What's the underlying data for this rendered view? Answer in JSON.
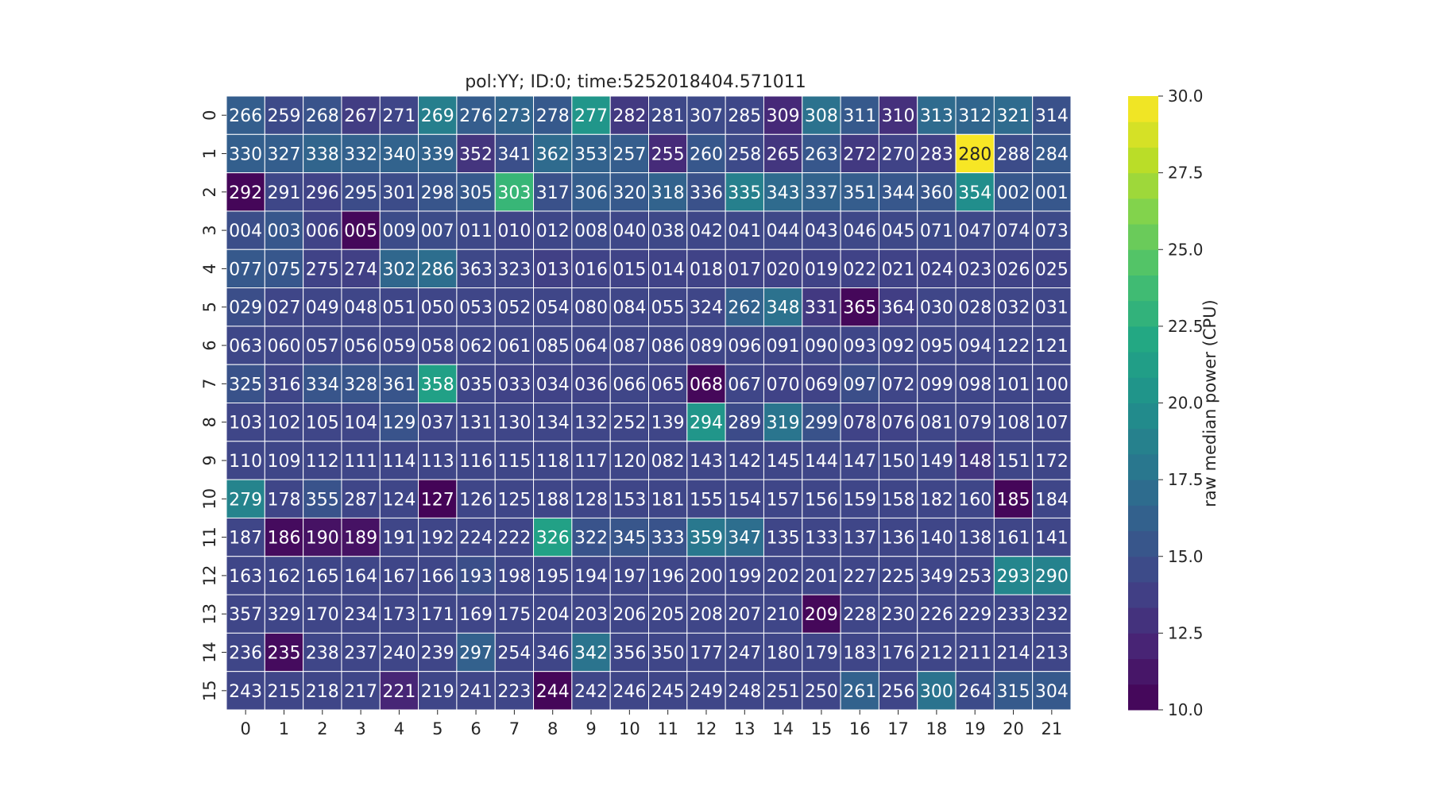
{
  "chart_data": {
    "type": "heatmap",
    "title": "pol:YY; ID:0; time:5252018404.571011",
    "x_tick_labels": [
      "0",
      "1",
      "2",
      "3",
      "4",
      "5",
      "6",
      "7",
      "8",
      "9",
      "10",
      "11",
      "12",
      "13",
      "14",
      "15",
      "16",
      "17",
      "18",
      "19",
      "20",
      "21"
    ],
    "y_tick_labels": [
      "0",
      "1",
      "2",
      "3",
      "4",
      "5",
      "6",
      "7",
      "8",
      "9",
      "10",
      "11",
      "12",
      "13",
      "14",
      "15"
    ],
    "colorbar": {
      "label": "raw median power (CPU)",
      "range": [
        10.0,
        30.0
      ],
      "ticks": [
        "10.0",
        "12.5",
        "15.0",
        "17.5",
        "20.0",
        "22.5",
        "25.0",
        "27.5",
        "30.0"
      ],
      "colormap": "viridis"
    },
    "annotations": [
      [
        "266",
        "259",
        "268",
        "267",
        "271",
        "269",
        "276",
        "273",
        "278",
        "277",
        "282",
        "281",
        "307",
        "285",
        "309",
        "308",
        "311",
        "310",
        "313",
        "312",
        "321",
        "314"
      ],
      [
        "330",
        "327",
        "338",
        "332",
        "340",
        "339",
        "352",
        "341",
        "362",
        "353",
        "257",
        "255",
        "260",
        "258",
        "265",
        "263",
        "272",
        "270",
        "283",
        "280",
        "288",
        "284"
      ],
      [
        "292",
        "291",
        "296",
        "295",
        "301",
        "298",
        "305",
        "303",
        "317",
        "306",
        "320",
        "318",
        "336",
        "335",
        "343",
        "337",
        "351",
        "344",
        "360",
        "354",
        "002",
        "001"
      ],
      [
        "004",
        "003",
        "006",
        "005",
        "009",
        "007",
        "011",
        "010",
        "012",
        "008",
        "040",
        "038",
        "042",
        "041",
        "044",
        "043",
        "046",
        "045",
        "071",
        "047",
        "074",
        "073"
      ],
      [
        "077",
        "075",
        "275",
        "274",
        "302",
        "286",
        "363",
        "323",
        "013",
        "016",
        "015",
        "014",
        "018",
        "017",
        "020",
        "019",
        "022",
        "021",
        "024",
        "023",
        "026",
        "025"
      ],
      [
        "029",
        "027",
        "049",
        "048",
        "051",
        "050",
        "053",
        "052",
        "054",
        "080",
        "084",
        "055",
        "324",
        "262",
        "348",
        "331",
        "365",
        "364",
        "030",
        "028",
        "032",
        "031"
      ],
      [
        "063",
        "060",
        "057",
        "056",
        "059",
        "058",
        "062",
        "061",
        "085",
        "064",
        "087",
        "086",
        "089",
        "096",
        "091",
        "090",
        "093",
        "092",
        "095",
        "094",
        "122",
        "121"
      ],
      [
        "325",
        "316",
        "334",
        "328",
        "361",
        "358",
        "035",
        "033",
        "034",
        "036",
        "066",
        "065",
        "068",
        "067",
        "070",
        "069",
        "097",
        "072",
        "099",
        "098",
        "101",
        "100"
      ],
      [
        "103",
        "102",
        "105",
        "104",
        "129",
        "037",
        "131",
        "130",
        "134",
        "132",
        "252",
        "139",
        "294",
        "289",
        "319",
        "299",
        "078",
        "076",
        "081",
        "079",
        "108",
        "107"
      ],
      [
        "110",
        "109",
        "112",
        "111",
        "114",
        "113",
        "116",
        "115",
        "118",
        "117",
        "120",
        "082",
        "143",
        "142",
        "145",
        "144",
        "147",
        "150",
        "149",
        "148",
        "151",
        "172"
      ],
      [
        "279",
        "178",
        "355",
        "287",
        "124",
        "127",
        "126",
        "125",
        "188",
        "128",
        "153",
        "181",
        "155",
        "154",
        "157",
        "156",
        "159",
        "158",
        "182",
        "160",
        "185",
        "184"
      ],
      [
        "187",
        "186",
        "190",
        "189",
        "191",
        "192",
        "224",
        "222",
        "326",
        "322",
        "345",
        "333",
        "359",
        "347",
        "135",
        "133",
        "137",
        "136",
        "140",
        "138",
        "161",
        "141"
      ],
      [
        "163",
        "162",
        "165",
        "164",
        "167",
        "166",
        "193",
        "198",
        "195",
        "194",
        "197",
        "196",
        "200",
        "199",
        "202",
        "201",
        "227",
        "225",
        "349",
        "253",
        "293",
        "290"
      ],
      [
        "357",
        "329",
        "170",
        "234",
        "173",
        "171",
        "169",
        "175",
        "204",
        "203",
        "206",
        "205",
        "208",
        "207",
        "210",
        "209",
        "228",
        "230",
        "226",
        "229",
        "233",
        "232"
      ],
      [
        "236",
        "235",
        "238",
        "237",
        "240",
        "239",
        "297",
        "254",
        "346",
        "342",
        "356",
        "350",
        "177",
        "247",
        "180",
        "179",
        "183",
        "176",
        "212",
        "211",
        "214",
        "213"
      ],
      [
        "243",
        "215",
        "218",
        "217",
        "221",
        "219",
        "241",
        "223",
        "244",
        "242",
        "246",
        "245",
        "249",
        "248",
        "251",
        "250",
        "261",
        "256",
        "300",
        "264",
        "315",
        "304"
      ]
    ],
    "values": [
      [
        16.0,
        14.5,
        15.2,
        13.6,
        14.2,
        18.6,
        15.9,
        16.5,
        15.6,
        20.5,
        13.4,
        14.4,
        14.5,
        14.3,
        12.4,
        17.5,
        15.6,
        12.8,
        17.0,
        16.5,
        17.0,
        15.0
      ],
      [
        16.1,
        16.0,
        16.5,
        16.2,
        16.4,
        16.4,
        13.1,
        14.9,
        17.0,
        16.3,
        15.9,
        12.5,
        15.5,
        14.5,
        13.2,
        15.5,
        13.4,
        14.0,
        13.8,
        29.8,
        14.7,
        15.6
      ],
      [
        10.3,
        14.3,
        14.0,
        14.7,
        14.7,
        15.3,
        15.6,
        23.3,
        15.0,
        16.0,
        15.6,
        16.4,
        15.0,
        18.7,
        17.0,
        16.4,
        15.9,
        15.5,
        15.4,
        19.8,
        15.5,
        15.5
      ],
      [
        14.8,
        15.5,
        14.0,
        10.4,
        14.7,
        14.7,
        14.4,
        14.1,
        14.3,
        14.5,
        14.3,
        14.4,
        14.3,
        14.4,
        14.4,
        14.3,
        14.4,
        14.4,
        14.5,
        14.4,
        14.4,
        14.5
      ],
      [
        15.6,
        15.5,
        14.0,
        13.8,
        16.7,
        17.2,
        14.4,
        14.2,
        13.8,
        14.0,
        14.0,
        14.0,
        14.0,
        14.0,
        14.0,
        14.0,
        14.0,
        14.0,
        14.0,
        14.0,
        14.0,
        14.0
      ],
      [
        14.8,
        14.2,
        14.2,
        14.2,
        14.2,
        14.2,
        14.2,
        14.2,
        14.2,
        14.2,
        14.2,
        14.2,
        14.2,
        16.3,
        17.5,
        13.4,
        10.4,
        13.7,
        14.2,
        14.2,
        14.2,
        14.2
      ],
      [
        14.3,
        14.2,
        14.2,
        14.2,
        14.2,
        14.2,
        14.2,
        14.2,
        14.2,
        14.2,
        14.2,
        14.2,
        14.2,
        14.2,
        14.2,
        14.2,
        14.2,
        14.2,
        14.2,
        14.2,
        14.2,
        14.2
      ],
      [
        15.1,
        14.2,
        15.3,
        15.3,
        15.3,
        21.4,
        14.2,
        14.0,
        14.0,
        14.0,
        14.2,
        14.0,
        10.4,
        14.2,
        14.0,
        14.0,
        14.8,
        14.2,
        14.2,
        14.2,
        14.2,
        14.2
      ],
      [
        14.2,
        14.2,
        14.2,
        14.2,
        15.2,
        14.2,
        14.2,
        14.2,
        14.2,
        14.2,
        14.2,
        14.2,
        20.5,
        14.6,
        17.8,
        15.1,
        14.0,
        14.0,
        14.2,
        14.2,
        14.2,
        14.2
      ],
      [
        14.2,
        14.2,
        14.2,
        14.2,
        14.2,
        14.2,
        14.2,
        14.2,
        14.2,
        14.2,
        14.2,
        14.2,
        14.2,
        14.2,
        14.2,
        14.2,
        14.2,
        14.2,
        14.2,
        13.2,
        14.2,
        14.2
      ],
      [
        19.0,
        14.2,
        15.2,
        14.2,
        14.2,
        10.2,
        14.2,
        14.2,
        14.2,
        14.2,
        14.2,
        14.2,
        14.2,
        14.2,
        14.2,
        14.2,
        14.2,
        14.2,
        14.2,
        14.2,
        10.3,
        14.2
      ],
      [
        14.2,
        10.6,
        11.0,
        11.0,
        14.2,
        14.2,
        14.2,
        14.2,
        21.5,
        15.2,
        15.4,
        15.2,
        18.0,
        17.2,
        14.2,
        14.2,
        14.2,
        14.2,
        14.2,
        14.2,
        14.2,
        14.2
      ],
      [
        14.2,
        14.2,
        14.2,
        14.2,
        14.2,
        14.2,
        14.8,
        14.2,
        14.2,
        14.2,
        14.2,
        14.2,
        14.2,
        14.2,
        14.2,
        14.2,
        14.2,
        14.2,
        14.2,
        14.2,
        19.2,
        18.8
      ],
      [
        14.2,
        14.2,
        14.2,
        14.2,
        14.2,
        14.2,
        14.2,
        14.2,
        14.2,
        14.2,
        14.2,
        14.2,
        14.2,
        14.2,
        14.2,
        10.4,
        14.2,
        14.2,
        14.2,
        14.2,
        14.2,
        14.2
      ],
      [
        14.2,
        10.6,
        14.2,
        14.2,
        14.2,
        14.2,
        16.2,
        14.2,
        14.2,
        17.7,
        14.2,
        14.2,
        14.2,
        14.2,
        14.2,
        14.2,
        14.2,
        14.2,
        14.2,
        14.2,
        14.2,
        14.2
      ],
      [
        14.2,
        14.2,
        14.2,
        14.2,
        12.2,
        14.2,
        14.2,
        14.2,
        10.3,
        14.2,
        14.2,
        14.2,
        14.2,
        14.2,
        14.2,
        14.2,
        16.3,
        14.2,
        17.6,
        14.6,
        15.7,
        15.6
      ]
    ]
  }
}
